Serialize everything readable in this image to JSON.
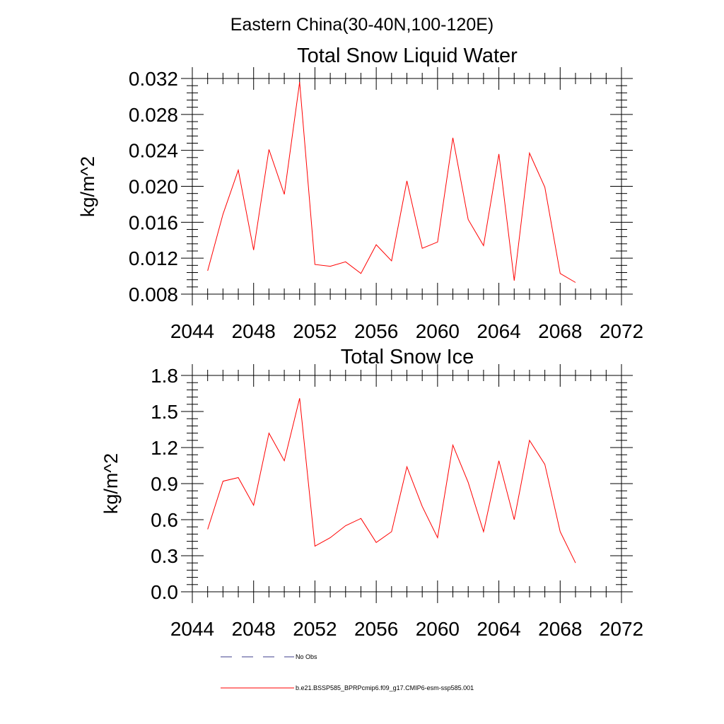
{
  "figure": {
    "main_title": "Eastern China(30-40N,100-120E)"
  },
  "chart_data": [
    {
      "type": "line",
      "title": "Total Snow Liquid Water",
      "xlabel": "",
      "ylabel": "kg/m^2",
      "xlim": [
        2044,
        2072
      ],
      "ylim": [
        0.008,
        0.032
      ],
      "xticks": [
        "2044",
        "2048",
        "2052",
        "2056",
        "2060",
        "2064",
        "2068",
        "2072"
      ],
      "yticks": [
        "0.008",
        "0.012",
        "0.016",
        "0.020",
        "0.024",
        "0.028",
        "0.032"
      ],
      "grid": false,
      "series": [
        {
          "name": "b.e21.BSSP585_BPRPcmip6.f09_g17.CMIP6-esm-ssp585.001",
          "color": "#ff0000",
          "x": [
            2045,
            2046,
            2047,
            2048,
            2049,
            2050,
            2051,
            2052,
            2053,
            2054,
            2055,
            2056,
            2057,
            2058,
            2059,
            2060,
            2061,
            2062,
            2063,
            2064,
            2065,
            2066,
            2067,
            2068,
            2069
          ],
          "values": [
            0.0106,
            0.0169,
            0.0218,
            0.0129,
            0.0241,
            0.0191,
            0.0316,
            0.0113,
            0.0111,
            0.0116,
            0.0103,
            0.0135,
            0.0117,
            0.0206,
            0.0131,
            0.0138,
            0.0254,
            0.0163,
            0.0134,
            0.0236,
            0.0095,
            0.0237,
            0.0199,
            0.0103,
            0.0093
          ]
        }
      ]
    },
    {
      "type": "line",
      "title": "Total Snow Ice",
      "xlabel": "",
      "ylabel": "kg/m^2",
      "xlim": [
        2044,
        2072
      ],
      "ylim": [
        0.0,
        1.8
      ],
      "xticks": [
        "2044",
        "2048",
        "2052",
        "2056",
        "2060",
        "2064",
        "2068",
        "2072"
      ],
      "yticks": [
        "0.0",
        "0.3",
        "0.6",
        "0.9",
        "1.2",
        "1.5",
        "1.8"
      ],
      "grid": false,
      "series": [
        {
          "name": "b.e21.BSSP585_BPRPcmip6.f09_g17.CMIP6-esm-ssp585.001",
          "color": "#ff0000",
          "x": [
            2045,
            2046,
            2047,
            2048,
            2049,
            2050,
            2051,
            2052,
            2053,
            2054,
            2055,
            2056,
            2057,
            2058,
            2059,
            2060,
            2061,
            2062,
            2063,
            2064,
            2065,
            2066,
            2067,
            2068,
            2069
          ],
          "values": [
            0.52,
            0.92,
            0.95,
            0.72,
            1.32,
            1.09,
            1.61,
            0.38,
            0.45,
            0.55,
            0.61,
            0.41,
            0.5,
            1.04,
            0.71,
            0.45,
            1.22,
            0.91,
            0.5,
            1.09,
            0.6,
            1.26,
            1.06,
            0.5,
            0.24
          ]
        }
      ]
    }
  ],
  "legend": {
    "placement": "bottom",
    "entries": [
      {
        "label": "No Obs",
        "color": "#3c3c8c",
        "style": "dashed"
      },
      {
        "label": "b.e21.BSSP585_BPRPcmip6.f09_g17.CMIP6-esm-ssp585.001",
        "color": "#ff0000",
        "style": "solid"
      }
    ]
  }
}
